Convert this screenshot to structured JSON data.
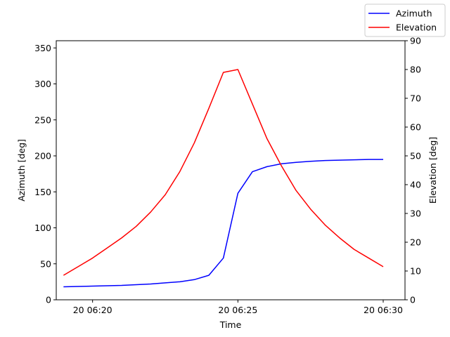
{
  "chart_data": {
    "type": "line",
    "xlabel": "Time",
    "ylabel_left": "Azimuth [deg]",
    "ylabel_right": "Elevation [deg]",
    "x": [
      "06:19:00",
      "06:19:30",
      "06:20:00",
      "06:20:30",
      "06:21:00",
      "06:21:30",
      "06:22:00",
      "06:22:30",
      "06:23:00",
      "06:23:30",
      "06:24:00",
      "06:24:30",
      "06:25:00",
      "06:25:30",
      "06:26:00",
      "06:26:30",
      "06:27:00",
      "06:27:30",
      "06:28:00",
      "06:28:30",
      "06:29:00",
      "06:29:30",
      "06:30:00"
    ],
    "x_ticks": [
      "20 06:20",
      "20 06:25",
      "20 06:30"
    ],
    "xlim": [
      "06:18:45",
      "06:30:45"
    ],
    "left_ylim": [
      0,
      360
    ],
    "left_yticks": [
      0,
      50,
      100,
      150,
      200,
      250,
      300,
      350
    ],
    "right_ylim": [
      0,
      90
    ],
    "right_yticks": [
      0,
      10,
      20,
      30,
      40,
      50,
      60,
      70,
      80,
      90
    ],
    "grid": false,
    "legend_position": "top-right",
    "series": [
      {
        "name": "Azimuth",
        "axis": "left",
        "color": "#0000ff",
        "values": [
          18,
          18.5,
          19,
          19.5,
          20,
          21,
          22,
          23.5,
          25,
          28,
          34,
          58,
          148,
          178,
          185,
          189,
          191,
          192.5,
          193.5,
          194,
          194.5,
          195,
          195
        ]
      },
      {
        "name": "Elevation",
        "axis": "right",
        "color": "#ff0000",
        "values": [
          8.5,
          11.5,
          14.5,
          18,
          21.5,
          25.5,
          30.5,
          36.5,
          44.5,
          54.5,
          66.5,
          79,
          80,
          68,
          56,
          46.5,
          38,
          31.5,
          26,
          21.5,
          17.5,
          14.5,
          11.5
        ]
      }
    ]
  }
}
